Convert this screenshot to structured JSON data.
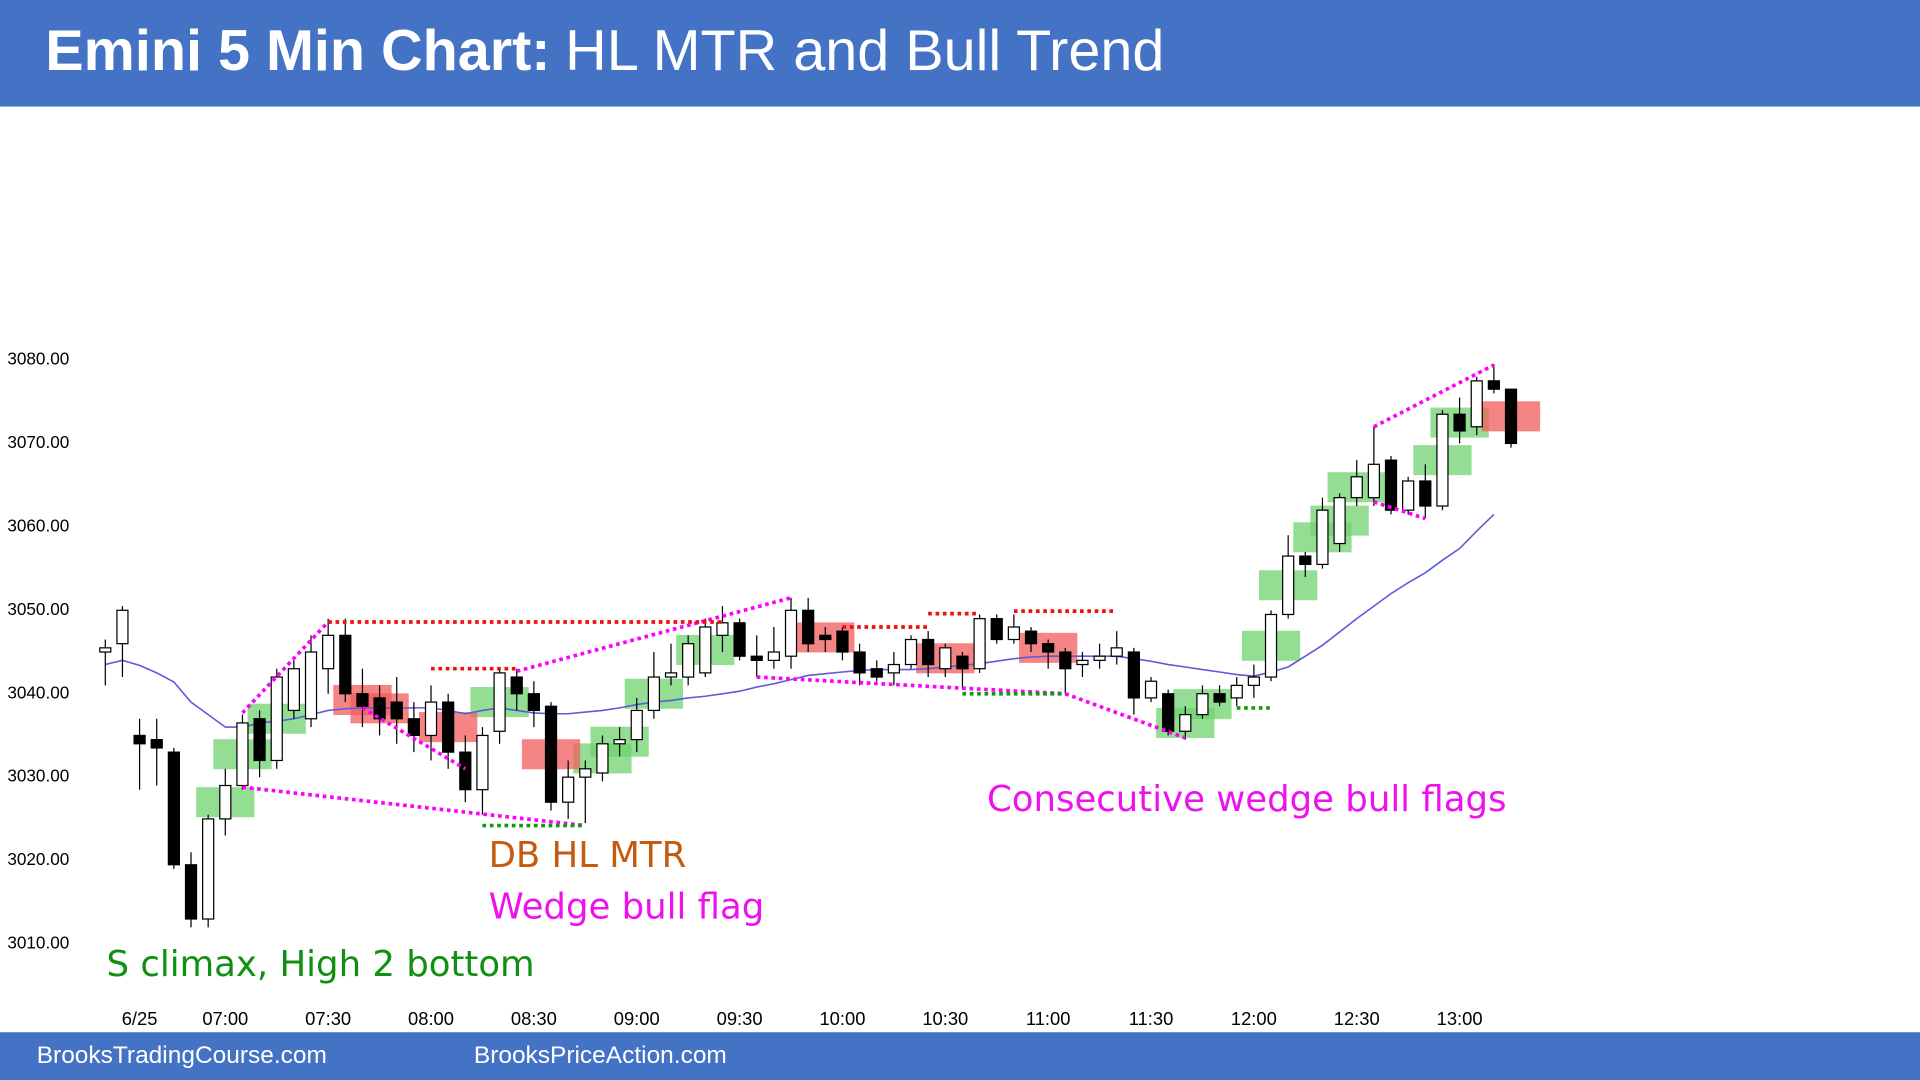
{
  "chart_data": {
    "type": "candlestick",
    "title": "Emini 5 Min Chart:",
    "subtitle": "HL MTR and Bull Trend",
    "footer": [
      "BrooksTradingCourse.com",
      "BrooksPriceAction.com"
    ],
    "open": [
      3045,
      3046,
      3035,
      3034.5,
      3033,
      3019.5,
      3013,
      3025,
      3029,
      3037,
      3032,
      3038,
      3037,
      3043,
      3047,
      3040,
      3039.5,
      3039,
      3037,
      3035,
      3039,
      3033,
      3028.5,
      3035.5,
      3042,
      3040,
      3038.5,
      3027,
      3030,
      3030.5,
      3034,
      3034.5,
      3038,
      3042,
      3042,
      3042.5,
      3047,
      3048.5,
      3044.5,
      3044,
      3044.5,
      3050,
      3047,
      3047.5,
      3045,
      3043,
      3042.5,
      3043.5,
      3046.5,
      3043,
      3044.5,
      3043,
      3049,
      3046.5,
      3047.5,
      3046,
      3045,
      3043.5,
      3044,
      3044.5,
      3045,
      3039.5,
      3040,
      3035.5,
      3037.5,
      3040,
      3039.5,
      3041,
      3042,
      3049.5,
      3056.5,
      3055.5,
      3058,
      3063.5,
      3063.5,
      3068,
      3062,
      3065.5,
      3062.5,
      3073.5,
      3072,
      3077.5,
      3076.5
    ],
    "high": [
      3046.5,
      3050.5,
      3037,
      3037,
      3033.5,
      3021,
      3025.5,
      3031,
      3037.5,
      3038,
      3043,
      3044,
      3047,
      3049,
      3049,
      3043,
      3041,
      3042,
      3039,
      3041,
      3040,
      3035,
      3036,
      3043,
      3043,
      3041.5,
      3039,
      3032,
      3032,
      3035,
      3036,
      3039.5,
      3045,
      3046,
      3047,
      3049,
      3050.5,
      3049,
      3047,
      3048,
      3051.5,
      3051.5,
      3048,
      3048,
      3046,
      3044,
      3045,
      3047,
      3047.5,
      3046,
      3045,
      3049.5,
      3049.5,
      3049.5,
      3048,
      3046.5,
      3045.5,
      3045,
      3046,
      3047.5,
      3045.5,
      3042,
      3040.5,
      3038.5,
      3041,
      3041,
      3042,
      3043.5,
      3050,
      3059,
      3057,
      3063.5,
      3064,
      3068,
      3072,
      3068.5,
      3066,
      3067.5,
      3074,
      3075.5,
      3078,
      3079.5,
      3076.5
    ],
    "low": [
      3041,
      3042,
      3028.5,
      3029,
      3019,
      3012,
      3012,
      3023,
      3028.5,
      3030,
      3031,
      3037,
      3036,
      3040,
      3039,
      3036,
      3035,
      3034,
      3033,
      3032,
      3031,
      3027,
      3025.5,
      3034,
      3038,
      3036,
      3026,
      3025,
      3024.5,
      3029.5,
      3032.5,
      3033,
      3037,
      3041,
      3041,
      3042,
      3045,
      3044,
      3042,
      3043,
      3043,
      3045,
      3045,
      3044,
      3041,
      3041.5,
      3041,
      3043,
      3042,
      3042,
      3040.5,
      3042.5,
      3046,
      3046,
      3045,
      3043,
      3040,
      3042,
      3043,
      3043.5,
      3037.5,
      3039,
      3035,
      3034.5,
      3037,
      3038.5,
      3038.5,
      3039.5,
      3041.5,
      3049,
      3054,
      3055,
      3057,
      3062.5,
      3062.5,
      3061.5,
      3061.5,
      3061,
      3062,
      3070,
      3071,
      3076,
      3069.5
    ],
    "close": [
      3045.5,
      3050,
      3034,
      3033.5,
      3019.5,
      3013,
      3025,
      3029,
      3036.5,
      3032,
      3042,
      3043,
      3045,
      3047,
      3040,
      3038.5,
      3037,
      3037,
      3035,
      3039,
      3033,
      3028.5,
      3035,
      3042.5,
      3040,
      3038,
      3027,
      3030,
      3031,
      3034,
      3034.5,
      3038,
      3042,
      3042.5,
      3046,
      3048,
      3048.5,
      3044.5,
      3044,
      3045,
      3050,
      3046,
      3046.5,
      3045,
      3042.5,
      3042,
      3043.5,
      3046.5,
      3043.5,
      3045.5,
      3043,
      3049,
      3046.5,
      3048,
      3046,
      3045,
      3043,
      3044,
      3044.5,
      3045.5,
      3039.5,
      3041.5,
      3035.5,
      3037.5,
      3040,
      3039,
      3041,
      3042,
      3049.5,
      3056.5,
      3055.5,
      3062,
      3063.5,
      3066,
      3067.5,
      3062,
      3065.5,
      3062.5,
      3073.5,
      3071.5,
      3077.5,
      3076.5,
      3070
    ],
    "moving_average": {
      "color": "#5b5bdc",
      "values": [
        3043.5,
        3044,
        3043.4,
        3042.5,
        3041.4,
        3039,
        3037.5,
        3036,
        3036,
        3036.5,
        3036.7,
        3037,
        3037.5,
        3038,
        3038.2,
        3038.3,
        3038.3,
        3038.3,
        3038.3,
        3038.3,
        3038,
        3037.6,
        3038,
        3038.3,
        3038,
        3037.7,
        3037.6,
        3037.6,
        3037.8,
        3038,
        3038.3,
        3038.7,
        3039,
        3039.2,
        3039.5,
        3039.7,
        3040,
        3040.3,
        3040.8,
        3041.2,
        3041.7,
        3042.2,
        3042.4,
        3042.6,
        3042.8,
        3042.9,
        3042.9,
        3042.9,
        3043,
        3043.2,
        3043.4,
        3043.6,
        3043.9,
        3044.2,
        3044.4,
        3044.5,
        3044.5,
        3044.5,
        3044.5,
        3044.5,
        3044.2,
        3043.9,
        3043.5,
        3043.2,
        3042.9,
        3042.6,
        3042.3,
        3042.1,
        3042.6,
        3043.2,
        3044.5,
        3045.8,
        3047.4,
        3049,
        3050.5,
        3052,
        3053.3,
        3054.5,
        3056,
        3057.4,
        3059.5,
        3061.5,
        null
      ]
    },
    "signal_bars": {
      "bull": {
        "color": "#6fd36f",
        "bars": [
          7,
          8,
          10,
          23,
          29,
          30,
          32,
          35,
          63,
          64,
          68,
          69,
          71,
          72,
          73,
          78,
          79
        ]
      },
      "bear": {
        "color": "#f25c5c",
        "bars": [
          15,
          16,
          20,
          26,
          42,
          49,
          55,
          82
        ]
      }
    },
    "trendlines": [
      {
        "color": "#ff00ff",
        "points": [
          [
            8,
            3037.7
          ],
          [
            13,
            3048.6
          ]
        ]
      },
      {
        "color": "#ff00ff",
        "points": [
          [
            8,
            3028.8
          ],
          [
            28,
            3024.2
          ]
        ]
      },
      {
        "color": "#ff00ff",
        "points": [
          [
            15,
            3038.3
          ],
          [
            21,
            3031
          ]
        ]
      },
      {
        "color": "#ff00ff",
        "points": [
          [
            24,
            3042.7
          ],
          [
            40,
            3051.5
          ]
        ]
      },
      {
        "color": "#ff00ff",
        "points": [
          [
            38,
            3042
          ],
          [
            56,
            3040
          ]
        ]
      },
      {
        "color": "#ff00ff",
        "points": [
          [
            56,
            3040
          ],
          [
            63,
            3034.7
          ]
        ]
      },
      {
        "color": "#ff00ff",
        "points": [
          [
            74,
            3072
          ],
          [
            81,
            3079.4
          ]
        ]
      },
      {
        "color": "#ff00ff",
        "points": [
          [
            74,
            3063
          ],
          [
            77,
            3061
          ]
        ]
      },
      {
        "color": "#ee1111",
        "points": [
          [
            13,
            3048.6
          ],
          [
            36,
            3048.6
          ]
        ]
      },
      {
        "color": "#ee1111",
        "points": [
          [
            19,
            3043
          ],
          [
            24,
            3043
          ]
        ]
      },
      {
        "color": "#ee1111",
        "points": [
          [
            43,
            3048
          ],
          [
            48,
            3048
          ]
        ]
      },
      {
        "color": "#ee1111",
        "points": [
          [
            48,
            3049.6
          ],
          [
            51,
            3049.6
          ]
        ]
      },
      {
        "color": "#ee1111",
        "points": [
          [
            53,
            3049.9
          ],
          [
            59,
            3049.9
          ]
        ]
      },
      {
        "color": "#119911",
        "points": [
          [
            22,
            3024.2
          ],
          [
            28,
            3024.2
          ]
        ]
      },
      {
        "color": "#119911",
        "points": [
          [
            50,
            3040
          ],
          [
            56,
            3040
          ]
        ]
      },
      {
        "color": "#119911",
        "points": [
          [
            66,
            3038.3
          ],
          [
            68,
            3038.3
          ]
        ]
      }
    ],
    "annotations": [
      {
        "text": "S climax, High 2 bottom",
        "color": "#109010"
      },
      {
        "text": "DB HL MTR",
        "color": "#c55a11"
      },
      {
        "text": "Wedge bull flag",
        "color": "#ee11ee"
      },
      {
        "text": "Consecutive wedge bull flags",
        "color": "#ee11ee"
      }
    ],
    "xlim": [
      -6,
      105.5
    ],
    "xticks": [
      {
        "value": 2,
        "label": "6/25"
      },
      {
        "value": 7,
        "label": "07:00"
      },
      {
        "value": 13,
        "label": "07:30"
      },
      {
        "value": 19,
        "label": "08:00"
      },
      {
        "value": 25,
        "label": "08:30"
      },
      {
        "value": 31,
        "label": "09:00"
      },
      {
        "value": 37,
        "label": "09:30"
      },
      {
        "value": 43,
        "label": "10:00"
      },
      {
        "value": 49,
        "label": "10:30"
      },
      {
        "value": 55,
        "label": "11:00"
      },
      {
        "value": 61,
        "label": "11:30"
      },
      {
        "value": 67,
        "label": "12:00"
      },
      {
        "value": 73,
        "label": "12:30"
      },
      {
        "value": 79,
        "label": "13:00"
      }
    ],
    "ylim": [
      3007,
      3110
    ],
    "yticks": [
      {
        "value": 3010,
        "label": "3010.00"
      },
      {
        "value": 3020,
        "label": "3020.00"
      },
      {
        "value": 3030,
        "label": "3030.00"
      },
      {
        "value": 3040,
        "label": "3040.00"
      },
      {
        "value": 3050,
        "label": "3050.00"
      },
      {
        "value": 3060,
        "label": "3060.00"
      },
      {
        "value": 3070,
        "label": "3070.00"
      },
      {
        "value": 3080,
        "label": "3080.00"
      }
    ]
  }
}
